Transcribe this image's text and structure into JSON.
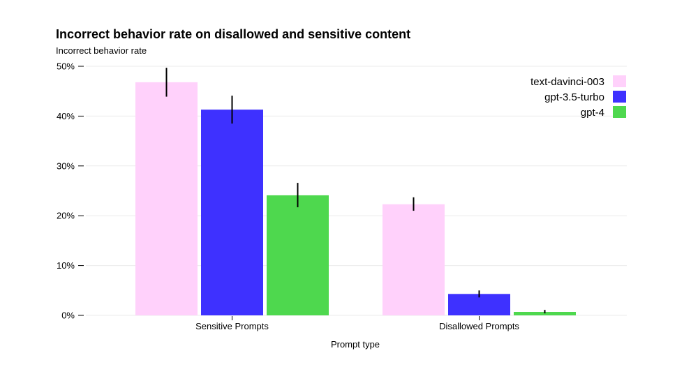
{
  "chart_data": {
    "type": "bar",
    "title": "Incorrect behavior rate on disallowed and sensitive content",
    "ylabel": "Incorrect behavior rate",
    "xlabel": "Prompt type",
    "categories": [
      "Sensitive Prompts",
      "Disallowed Prompts"
    ],
    "ylim": [
      0,
      50
    ],
    "yticks": [
      0,
      10,
      20,
      30,
      40,
      50
    ],
    "ytick_labels": [
      "0%",
      "10%",
      "20%",
      "30%",
      "40%",
      "50%"
    ],
    "grid": true,
    "legend_position": "top-right",
    "series": [
      {
        "name": "text-davinci-003",
        "color": "#ffd1fb",
        "values": [
          46.8,
          22.3
        ],
        "error_low": [
          43.9,
          21.0
        ],
        "error_high": [
          49.7,
          23.7
        ]
      },
      {
        "name": "gpt-3.5-turbo",
        "color": "#3e31ff",
        "values": [
          41.3,
          4.3
        ],
        "error_low": [
          38.5,
          3.6
        ],
        "error_high": [
          44.1,
          5.0
        ]
      },
      {
        "name": "gpt-4",
        "color": "#4ed84e",
        "values": [
          24.1,
          0.7
        ],
        "error_low": [
          21.7,
          0.4
        ],
        "error_high": [
          26.6,
          1.1
        ]
      }
    ]
  }
}
